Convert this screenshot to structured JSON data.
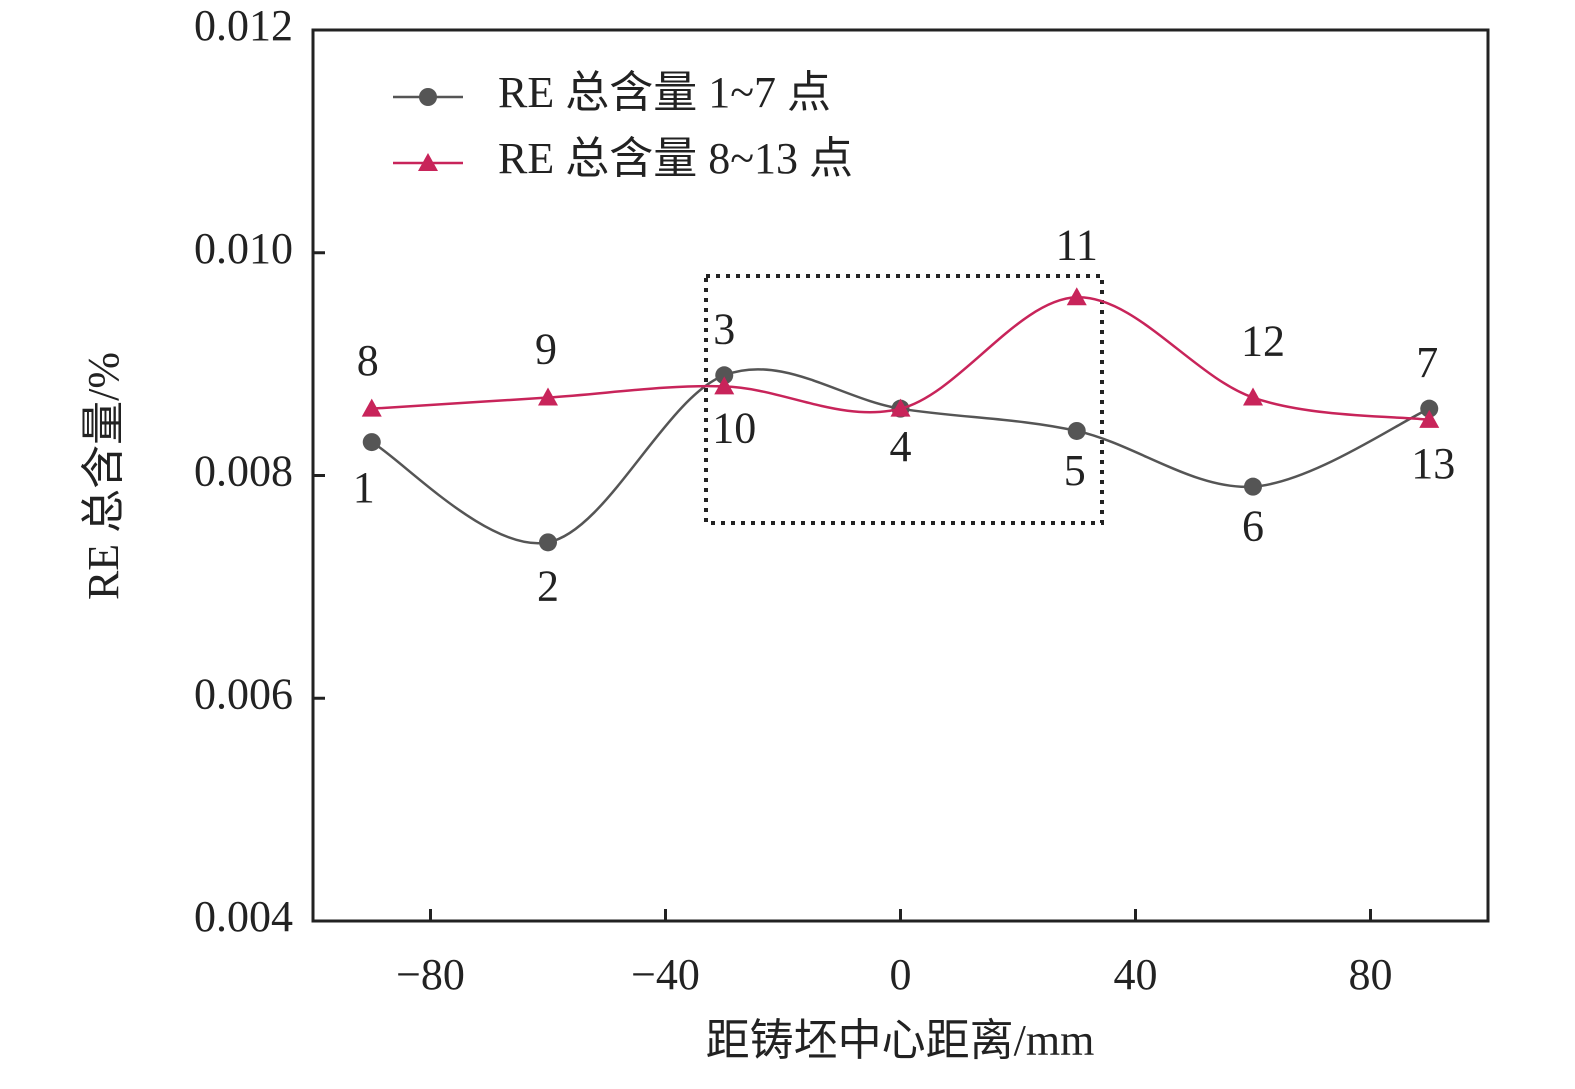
{
  "chart_data": {
    "type": "line",
    "x_label": "距铸坯中心距离/mm",
    "y_label": "RE 总含量/%",
    "xlim": [
      -100,
      100
    ],
    "xticks": [
      {
        "value": -80,
        "label": "−80"
      },
      {
        "value": -40,
        "label": "−40"
      },
      0,
      40,
      80
    ],
    "ylim": [
      0.004,
      0.012
    ],
    "yticks": [
      0.004,
      0.006,
      0.008,
      {
        "value": 0.01,
        "label": "0.010"
      },
      0.012
    ],
    "legend": "upper left",
    "series": [
      {
        "name": "RE 总含量 1~7 点",
        "color": "#555555",
        "marker": "circle",
        "x": [
          -90,
          -60,
          -30,
          0,
          30,
          60,
          90
        ],
        "values": [
          0.0083,
          0.0074,
          0.0089,
          0.0086,
          0.0084,
          0.0079,
          0.0086
        ],
        "point_labels": [
          "1",
          "2",
          "3",
          "4",
          "5",
          "6",
          "7"
        ]
      },
      {
        "name": "RE 总含量 8~13 点",
        "color": "#c8245a",
        "marker": "triangle",
        "x": [
          -90,
          -60,
          -30,
          0,
          30,
          60,
          90
        ],
        "values": [
          0.0086,
          0.0087,
          0.0088,
          0.0086,
          0.0096,
          0.0087,
          0.0085
        ],
        "point_labels": [
          "8",
          "9",
          "10",
          "4",
          "11",
          "12",
          "13"
        ]
      }
    ]
  }
}
